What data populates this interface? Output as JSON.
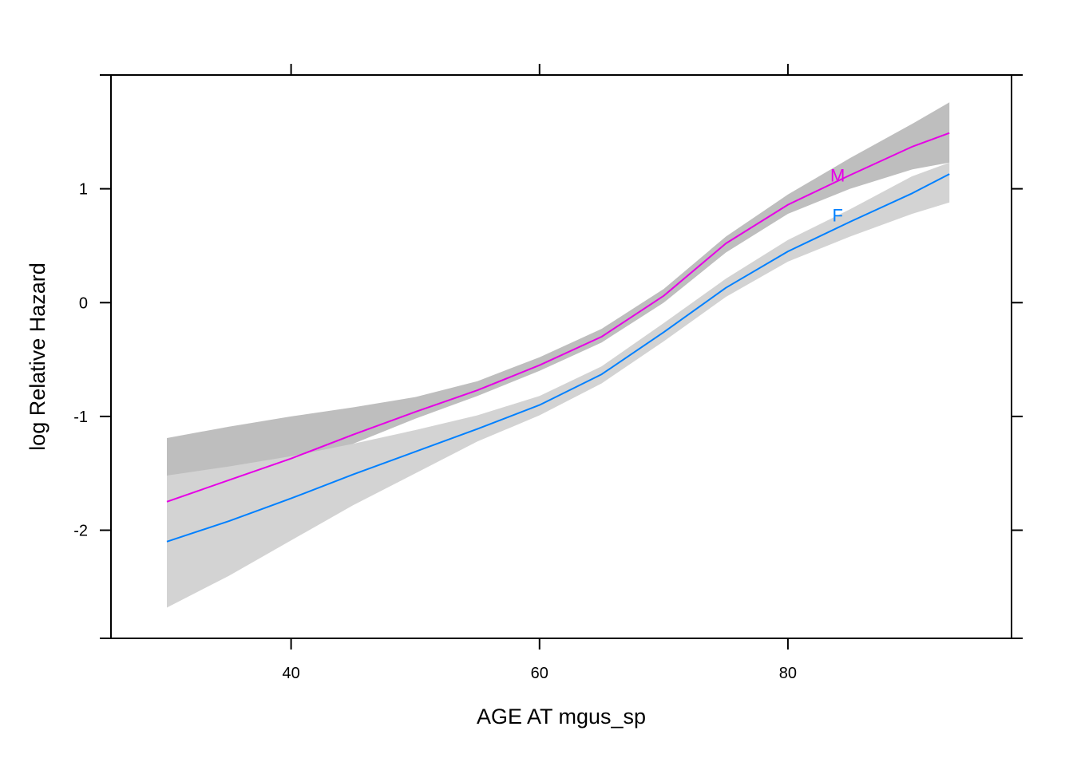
{
  "chart_data": {
    "type": "line",
    "xlabel": "AGE AT mgus_sp",
    "ylabel": "log Relative Hazard",
    "xlim": [
      25.5,
      98
    ],
    "ylim": [
      -2.95,
      2.0
    ],
    "x_ticks": [
      40,
      60,
      80
    ],
    "y_ticks": [
      -2,
      -1,
      0,
      1
    ],
    "x_tick_labels": [
      "40",
      "60",
      "80"
    ],
    "y_tick_labels": [
      "-2",
      "-1",
      "0",
      "1"
    ],
    "ticks_on_all_sides": true,
    "grid": false,
    "x": [
      30,
      35,
      40,
      45,
      50,
      55,
      60,
      65,
      70,
      75,
      80,
      85,
      90,
      93
    ],
    "series": [
      {
        "name": "M",
        "color": "#e600e6",
        "values": [
          -1.75,
          -1.56,
          -1.37,
          -1.16,
          -0.96,
          -0.77,
          -0.55,
          -0.3,
          0.06,
          0.52,
          0.86,
          1.12,
          1.37,
          1.49
        ],
        "lower": [
          -2.32,
          -1.94,
          -1.58,
          -1.24,
          -1.02,
          -0.82,
          -0.6,
          -0.35,
          0.0,
          0.44,
          0.78,
          1.0,
          1.17,
          1.23
        ],
        "upper": [
          -1.19,
          -1.09,
          -1.0,
          -0.92,
          -0.83,
          -0.69,
          -0.48,
          -0.23,
          0.12,
          0.58,
          0.95,
          1.27,
          1.57,
          1.76
        ],
        "band_color": "#bebebe",
        "label_at": [
          84,
          1.12
        ]
      },
      {
        "name": "F",
        "color": "#0080ff",
        "values": [
          -2.1,
          -1.92,
          -1.72,
          -1.51,
          -1.31,
          -1.11,
          -0.9,
          -0.63,
          -0.26,
          0.13,
          0.45,
          0.71,
          0.96,
          1.13
        ],
        "lower": [
          -2.68,
          -2.4,
          -2.09,
          -1.78,
          -1.5,
          -1.22,
          -0.99,
          -0.71,
          -0.34,
          0.05,
          0.36,
          0.58,
          0.78,
          0.88
        ],
        "upper": [
          -1.52,
          -1.44,
          -1.35,
          -1.24,
          -1.12,
          -0.99,
          -0.82,
          -0.56,
          -0.18,
          0.21,
          0.55,
          0.82,
          1.11,
          1.23
        ],
        "band_color": "#d3d3d3",
        "label_at": [
          84,
          0.77
        ]
      }
    ]
  }
}
